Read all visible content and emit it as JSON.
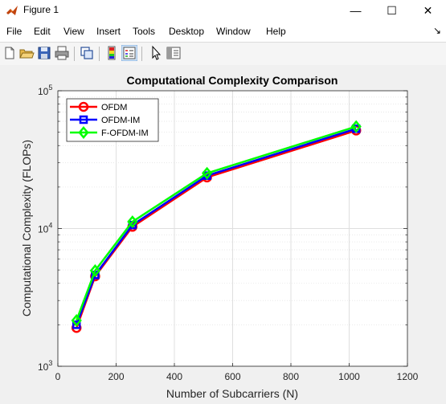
{
  "window": {
    "title": "Figure 1",
    "minimize_glyph": "—",
    "maximize_glyph": "☐",
    "close_glyph": "✕"
  },
  "menu": {
    "items": [
      "File",
      "Edit",
      "View",
      "Insert",
      "Tools",
      "Desktop",
      "Window",
      "Help"
    ],
    "overflow_glyph": "↘"
  },
  "toolbar": {
    "buttons": [
      "new-figure-icon",
      "open-file-icon",
      "save-icon",
      "print-icon",
      "link-plot-icon",
      "colorbar-icon",
      "legend-icon",
      "pointer-icon",
      "property-inspector-icon"
    ]
  },
  "chart_data": {
    "type": "line",
    "title": "Computational Complexity Comparison",
    "xlabel": "Number of Subcarriers (N)",
    "ylabel": "Computational Complexity (FLOPs)",
    "xlim": [
      0,
      1200
    ],
    "ylim": [
      1000,
      100000
    ],
    "yscale": "log",
    "grid": true,
    "legend_position": "top-left",
    "x": [
      64,
      128,
      256,
      512,
      1024
    ],
    "xticks": [
      "0",
      "200",
      "400",
      "600",
      "800",
      "1000",
      "1200"
    ],
    "yticks": [
      {
        "base": "10",
        "exp": "3"
      },
      {
        "base": "10",
        "exp": "4"
      },
      {
        "base": "10",
        "exp": "5"
      }
    ],
    "series": [
      {
        "name": "OFDM",
        "color": "#ff0000",
        "marker": "circle",
        "values": [
          1900,
          4500,
          10300,
          23500,
          51500
        ]
      },
      {
        "name": "OFDM-IM",
        "color": "#0000ff",
        "marker": "square",
        "values": [
          2000,
          4600,
          10600,
          24200,
          53000
        ]
      },
      {
        "name": "F-OFDM-IM",
        "color": "#00ff00",
        "marker": "diamond",
        "values": [
          2150,
          4950,
          11200,
          25200,
          55000
        ]
      }
    ]
  }
}
